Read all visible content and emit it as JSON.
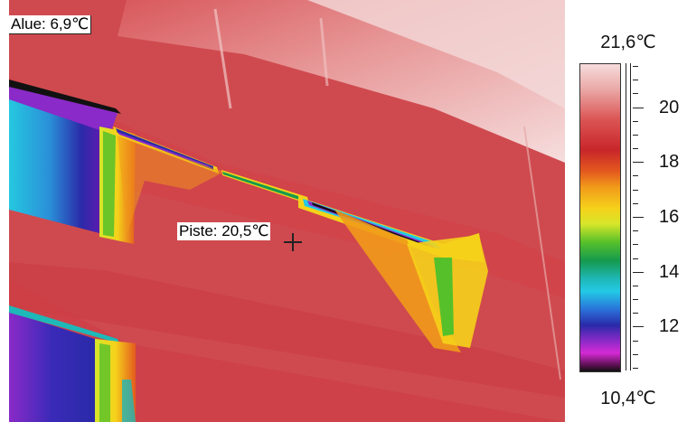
{
  "overlay": {
    "area_label": "Alue: 6,9℃",
    "spot_label": "Piste: 20,5℃"
  },
  "scale": {
    "max_label": "21,6℃",
    "min_label": "10,4℃",
    "max_value": 21.6,
    "min_value": 10.4,
    "tick_labels": [
      {
        "value": 20,
        "text": "20"
      },
      {
        "value": 18,
        "text": "18"
      },
      {
        "value": 16,
        "text": "16"
      },
      {
        "value": 14,
        "text": "14"
      },
      {
        "value": 12,
        "text": "12"
      }
    ]
  },
  "colors": {
    "background_hot": "#cf4a4f",
    "pale": "#f3d3d3",
    "cold": "#1fb8d8",
    "coldest": "#2a2aa8"
  }
}
